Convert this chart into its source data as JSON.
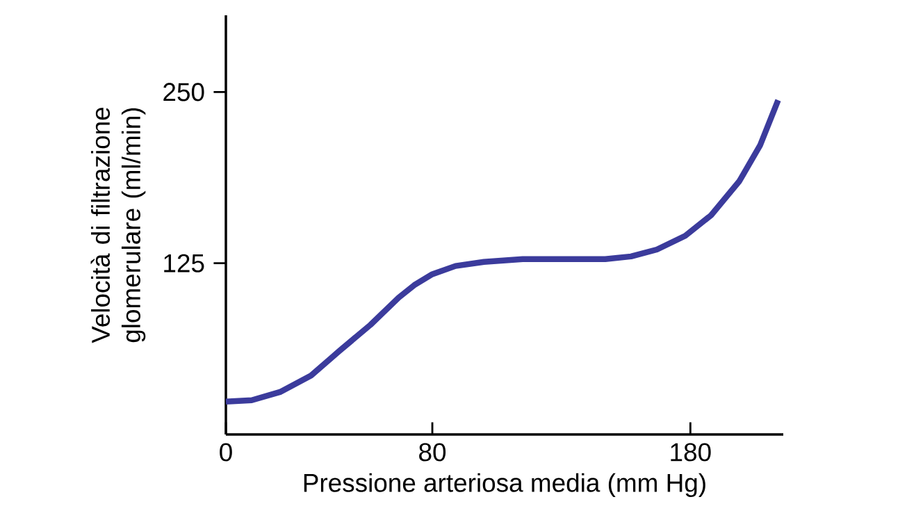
{
  "chart_data": {
    "type": "line",
    "xlabel": "Pressione arteriosa media (mm Hg)",
    "ylabel": "Velocità di filtrazione glomerulare (ml/min)",
    "xlim": [
      0,
      216
    ],
    "ylim": [
      0,
      306
    ],
    "xticks": [
      0,
      80,
      180
    ],
    "yticks": [
      125,
      250
    ],
    "grid": false,
    "marker": "none",
    "line_style": "solid",
    "series": [
      {
        "color": "#3b3b9c",
        "x": [
          0,
          10,
          21,
          33,
          44,
          56,
          67,
          73,
          80,
          89,
          100,
          115,
          131,
          147,
          157,
          167,
          178,
          188,
          199,
          207,
          214
        ],
        "values": [
          24,
          25,
          31,
          43,
          61,
          80,
          100,
          109,
          117,
          123,
          126,
          128,
          128,
          128,
          130,
          135,
          145,
          160,
          185,
          211,
          244
        ]
      }
    ]
  }
}
